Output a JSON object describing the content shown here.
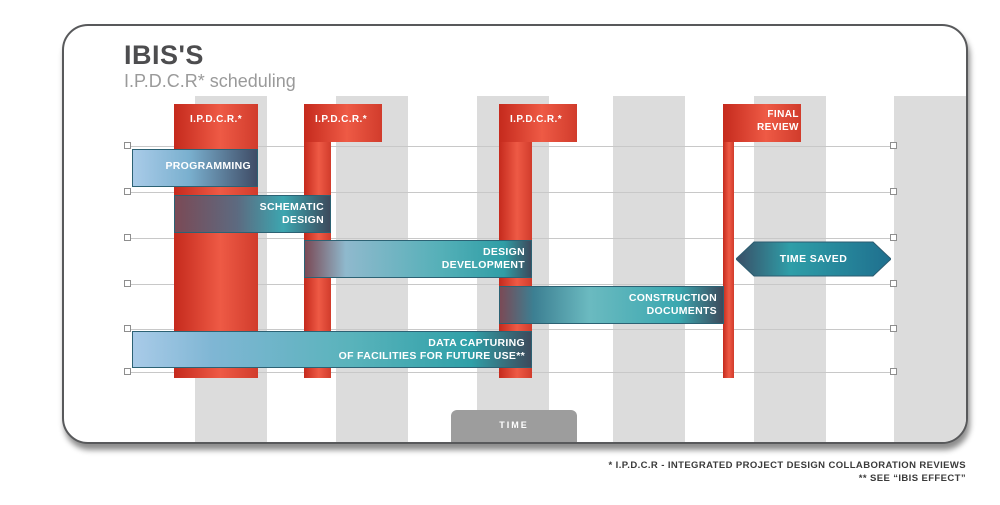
{
  "diagram": {
    "title": "IBIS'S",
    "subtitle": "I.P.D.C.R* scheduling",
    "reviews": [
      {
        "label": "I.P.D.C.R.*"
      },
      {
        "label": "I.P.D.C.R.*"
      },
      {
        "label": "I.P.D.C.R.*"
      },
      {
        "label_line1": "FINAL",
        "label_line2": "REVIEW"
      }
    ],
    "tasks": [
      {
        "line1": "PROGRAMMING",
        "line2": ""
      },
      {
        "line1": "SCHEMATIC",
        "line2": "DESIGN"
      },
      {
        "line1": "DESIGN",
        "line2": "DEVELOPMENT"
      },
      {
        "line1": "CONSTRUCTION",
        "line2": "DOCUMENTS"
      },
      {
        "line1": "DATA CAPTURING",
        "line2": "OF FACILITIES FOR FUTURE USE**"
      }
    ],
    "time_saved": "TIME SAVED",
    "time_axis": "TIME",
    "colors": {
      "review": "#e8473a",
      "task_start": "#a8c8e8",
      "task_end": "#2fa0a8",
      "dark": "#3d4a5c"
    }
  },
  "footnotes": {
    "line1": "* I.P.D.C.R - INTEGRATED PROJECT DESIGN COLLABORATION REVIEWS",
    "line2": "** SEE “IBIS EFFECT”"
  }
}
